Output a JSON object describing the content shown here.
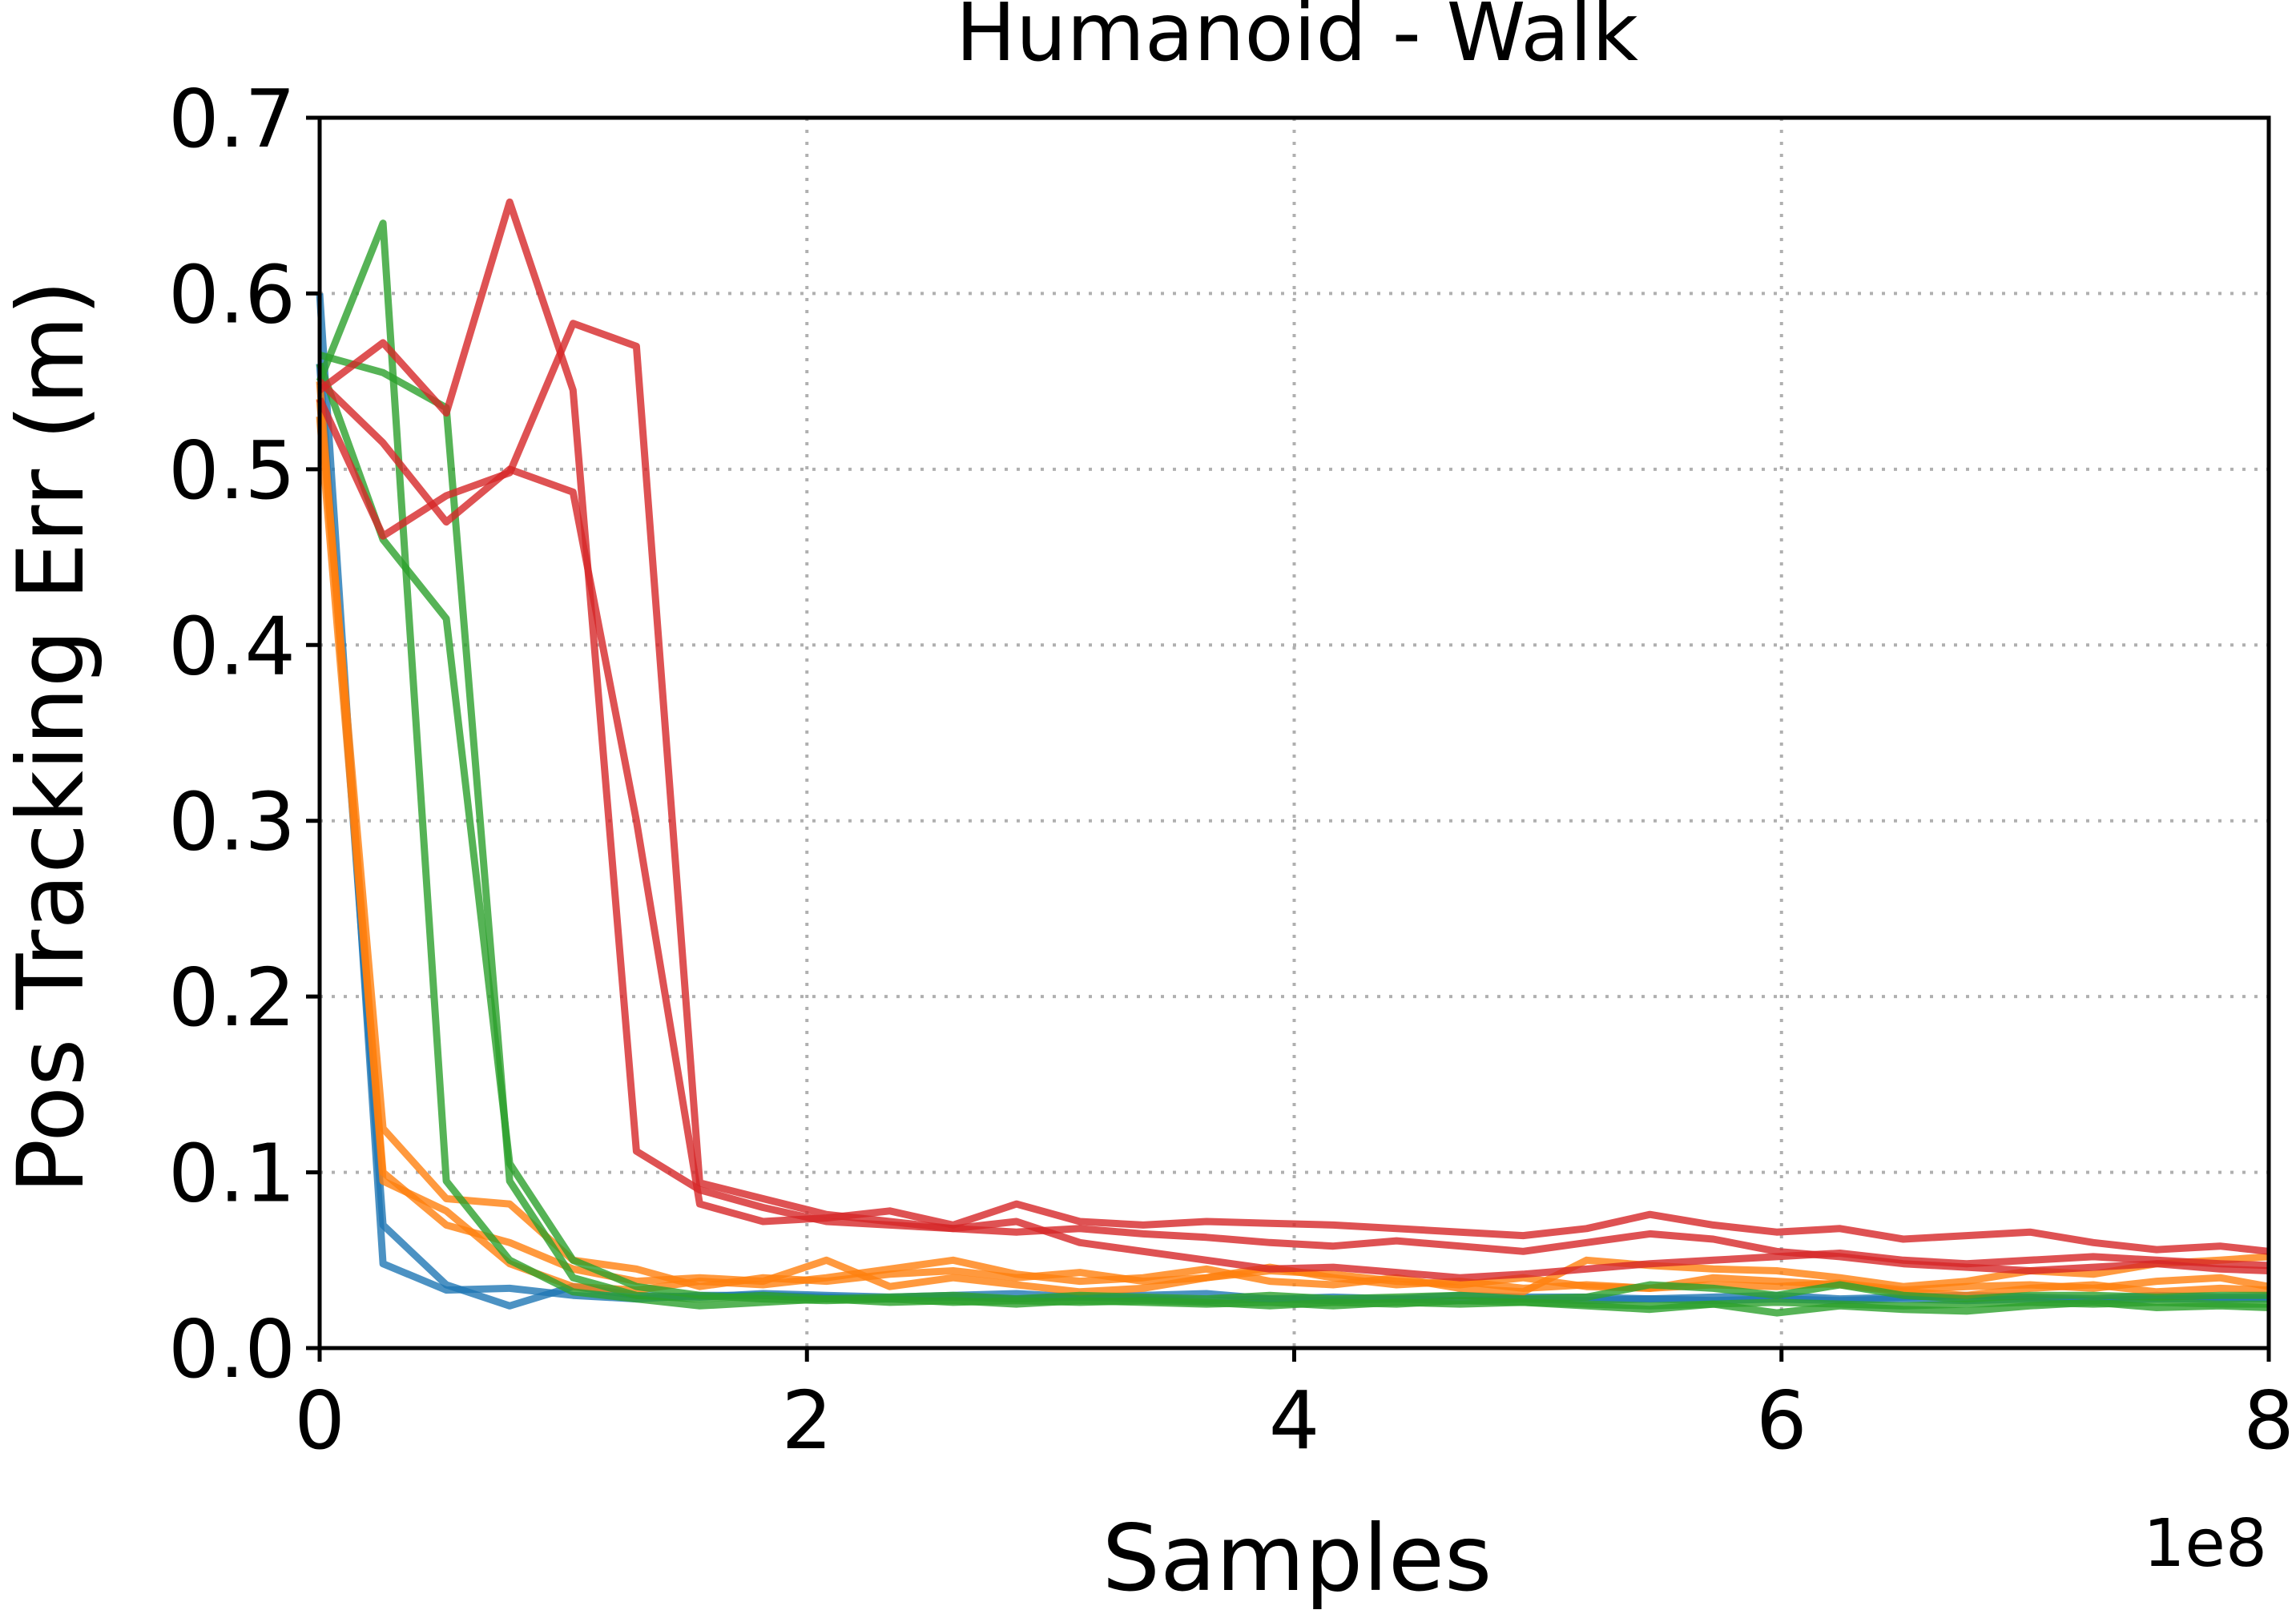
{
  "chart_data": {
    "type": "line",
    "title": "Humanoid - Walk",
    "xlabel": "Samples",
    "ylabel": "Pos Tracking Err (m)",
    "x_offset_label": "1e8",
    "xlim": [
      0,
      800000000
    ],
    "ylim": [
      0,
      0.7
    ],
    "xticks": [
      0,
      200000000,
      400000000,
      600000000,
      800000000
    ],
    "xtick_labels": [
      "0",
      "2",
      "4",
      "6",
      "8"
    ],
    "yticks": [
      0,
      0.1,
      0.2,
      0.3,
      0.4,
      0.5,
      0.6,
      0.7
    ],
    "ytick_labels": [
      "0.0",
      "0.1",
      "0.2",
      "0.3",
      "0.4",
      "0.5",
      "0.6",
      "0.7"
    ],
    "grid": true,
    "legend": "none",
    "x": [
      0,
      26000000,
      52000000,
      78000000,
      104000000,
      130000000,
      156000000,
      182000000,
      208000000,
      234000000,
      260000000,
      286000000,
      312000000,
      338000000,
      364000000,
      390000000,
      416000000,
      442000000,
      468000000,
      494000000,
      520000000,
      546000000,
      572000000,
      598000000,
      624000000,
      650000000,
      676000000,
      702000000,
      728000000,
      754000000,
      780000000,
      800000000
    ],
    "series": [
      {
        "color": "#1f77b4",
        "values": [
          0.6,
          0.048,
          0.033,
          0.034,
          0.03,
          0.028,
          0.03,
          0.03,
          0.029,
          0.028,
          0.029,
          0.028,
          0.029,
          0.028,
          0.027,
          0.028,
          0.027,
          0.028,
          0.027,
          0.028,
          0.027,
          0.028,
          0.027,
          0.028,
          0.027,
          0.028,
          0.027,
          0.028,
          0.027,
          0.028,
          0.028,
          0.028
        ]
      },
      {
        "color": "#1f77b4",
        "values": [
          0.56,
          0.07,
          0.036,
          0.024,
          0.035,
          0.03,
          0.029,
          0.031,
          0.03,
          0.029,
          0.03,
          0.031,
          0.029,
          0.03,
          0.031,
          0.028,
          0.029,
          0.028,
          0.03,
          0.029,
          0.029,
          0.028,
          0.029,
          0.03,
          0.028,
          0.029,
          0.03,
          0.029,
          0.028,
          0.03,
          0.029,
          0.029
        ]
      },
      {
        "color": "#ff7f0e",
        "values": [
          0.54,
          0.125,
          0.085,
          0.082,
          0.05,
          0.045,
          0.035,
          0.04,
          0.038,
          0.042,
          0.044,
          0.04,
          0.043,
          0.038,
          0.04,
          0.044,
          0.042,
          0.038,
          0.036,
          0.04,
          0.035,
          0.034,
          0.036,
          0.035,
          0.037,
          0.033,
          0.035,
          0.036,
          0.034,
          0.038,
          0.04,
          0.035
        ]
      },
      {
        "color": "#ff7f0e",
        "values": [
          0.55,
          0.095,
          0.078,
          0.048,
          0.035,
          0.033,
          0.038,
          0.036,
          0.04,
          0.045,
          0.05,
          0.042,
          0.038,
          0.04,
          0.045,
          0.038,
          0.036,
          0.04,
          0.034,
          0.032,
          0.05,
          0.047,
          0.045,
          0.044,
          0.04,
          0.035,
          0.038,
          0.044,
          0.042,
          0.048,
          0.05,
          0.052
        ]
      },
      {
        "color": "#ff7f0e",
        "values": [
          0.53,
          0.1,
          0.07,
          0.06,
          0.045,
          0.038,
          0.04,
          0.038,
          0.05,
          0.035,
          0.04,
          0.036,
          0.032,
          0.034,
          0.04,
          0.046,
          0.04,
          0.036,
          0.038,
          0.034,
          0.036,
          0.034,
          0.04,
          0.038,
          0.036,
          0.032,
          0.03,
          0.034,
          0.036,
          0.032,
          0.034,
          0.033
        ]
      },
      {
        "color": "#2ca02c",
        "values": [
          0.55,
          0.64,
          0.095,
          0.05,
          0.032,
          0.028,
          0.024,
          0.026,
          0.028,
          0.026,
          0.027,
          0.025,
          0.027,
          0.026,
          0.025,
          0.026,
          0.024,
          0.026,
          0.025,
          0.026,
          0.025,
          0.024,
          0.025,
          0.026,
          0.025,
          0.024,
          0.025,
          0.026,
          0.025,
          0.026,
          0.025,
          0.025
        ]
      },
      {
        "color": "#2ca02c",
        "values": [
          0.565,
          0.555,
          0.535,
          0.095,
          0.04,
          0.03,
          0.028,
          0.03,
          0.028,
          0.029,
          0.03,
          0.028,
          0.03,
          0.029,
          0.028,
          0.03,
          0.028,
          0.029,
          0.03,
          0.028,
          0.029,
          0.036,
          0.034,
          0.03,
          0.036,
          0.03,
          0.028,
          0.03,
          0.03,
          0.029,
          0.03,
          0.03
        ]
      },
      {
        "color": "#2ca02c",
        "values": [
          0.56,
          0.46,
          0.415,
          0.105,
          0.05,
          0.035,
          0.03,
          0.028,
          0.027,
          0.028,
          0.026,
          0.027,
          0.026,
          0.027,
          0.026,
          0.024,
          0.026,
          0.025,
          0.027,
          0.026,
          0.024,
          0.022,
          0.025,
          0.02,
          0.024,
          0.022,
          0.021,
          0.024,
          0.026,
          0.023,
          0.024,
          0.023
        ]
      },
      {
        "color": "#d62728",
        "values": [
          0.545,
          0.572,
          0.532,
          0.652,
          0.545,
          0.112,
          0.09,
          0.08,
          0.072,
          0.07,
          0.068,
          0.072,
          0.06,
          0.055,
          0.05,
          0.045,
          0.046,
          0.043,
          0.04,
          0.042,
          0.045,
          0.048,
          0.05,
          0.052,
          0.054,
          0.05,
          0.048,
          0.05,
          0.052,
          0.05,
          0.048,
          0.047
        ]
      },
      {
        "color": "#d62728",
        "values": [
          0.54,
          0.462,
          0.485,
          0.498,
          0.583,
          0.57,
          0.094,
          0.085,
          0.076,
          0.072,
          0.068,
          0.066,
          0.068,
          0.065,
          0.063,
          0.06,
          0.058,
          0.061,
          0.058,
          0.055,
          0.06,
          0.065,
          0.062,
          0.055,
          0.052,
          0.048,
          0.046,
          0.044,
          0.046,
          0.048,
          0.045,
          0.044
        ]
      },
      {
        "color": "#d62728",
        "values": [
          0.55,
          0.515,
          0.47,
          0.5,
          0.487,
          0.3,
          0.082,
          0.072,
          0.074,
          0.078,
          0.07,
          0.082,
          0.072,
          0.07,
          0.072,
          0.071,
          0.07,
          0.068,
          0.066,
          0.064,
          0.068,
          0.076,
          0.07,
          0.066,
          0.068,
          0.062,
          0.064,
          0.066,
          0.06,
          0.056,
          0.058,
          0.055
        ]
      }
    ]
  }
}
